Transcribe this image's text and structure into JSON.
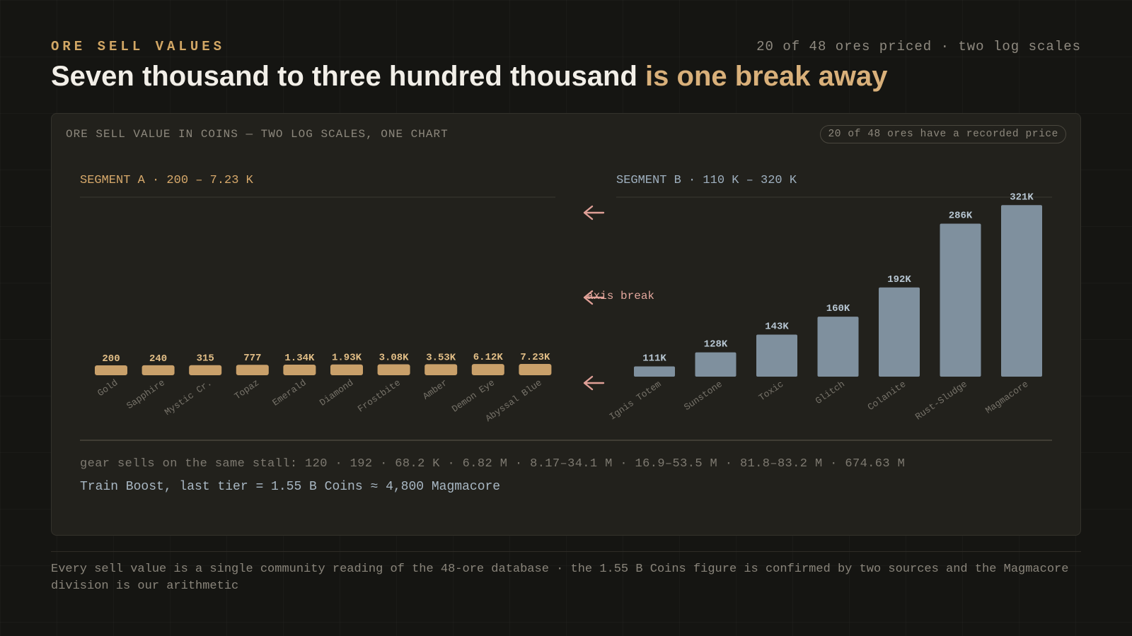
{
  "header": {
    "eyebrow": "ORE SELL VALUES",
    "meta": "20 of 48 ores priced · two log scales",
    "headline_main": "Seven thousand to three hundred thousand ",
    "headline_accent": "is one break away"
  },
  "panel": {
    "title": "ORE SELL VALUE IN COINS — TWO LOG SCALES, ONE CHART",
    "badge": "20 of 48 ores have a recorded price",
    "note_gear": "gear sells on the same stall: 120 · 192 · 68.2 K · 6.82 M · 8.17–34.1 M · 16.9–53.5 M · 81.8–83.2 M · 674.63 M",
    "note_train": "Train Boost, last tier = 1.55 B Coins ≈ 4,800 Magmacore"
  },
  "footer": {
    "text": "Every sell value is a single community reading of the 48-ore database · the 1.55 B Coins figure is confirmed by two sources and the Magmacore division is our arithmetic"
  },
  "colors": {
    "segment_a": "#c9a06a",
    "segment_b": "#7f909e",
    "break_arrow": "#e0a097",
    "accent": "#d9b07a"
  },
  "chart_data": {
    "type": "bar",
    "title": "ORE SELL VALUE IN COINS — TWO LOG SCALES, ONE CHART",
    "scale": "log",
    "axis_break_label": "axis break",
    "segments": [
      {
        "label": "SEGMENT A · 200 – 7.23 K",
        "ylim": [
          200,
          7230
        ],
        "categories": [
          "Gold",
          "Sapphire",
          "Mystic Cr.",
          "Topaz",
          "Emerald",
          "Diamond",
          "Frostbite",
          "Amber",
          "Demon Eye",
          "Abyssal Blue"
        ],
        "values": [
          200,
          240,
          315,
          777,
          1340,
          1930,
          3080,
          3530,
          6120,
          7230
        ],
        "value_labels": [
          "200",
          "240",
          "315",
          "777",
          "1.34K",
          "1.93K",
          "3.08K",
          "3.53K",
          "6.12K",
          "7.23K"
        ]
      },
      {
        "label": "SEGMENT B · 110 K – 320 K",
        "ylim": [
          110000,
          320000
        ],
        "categories": [
          "Ignis Totem",
          "Sunstone",
          "Toxic",
          "Glitch",
          "Colanite",
          "Rust-Sludge",
          "Magmacore"
        ],
        "values": [
          111000,
          128000,
          143000,
          160000,
          192000,
          286000,
          321000
        ],
        "value_labels": [
          "111K",
          "128K",
          "143K",
          "160K",
          "192K",
          "286K",
          "321K"
        ]
      }
    ]
  }
}
